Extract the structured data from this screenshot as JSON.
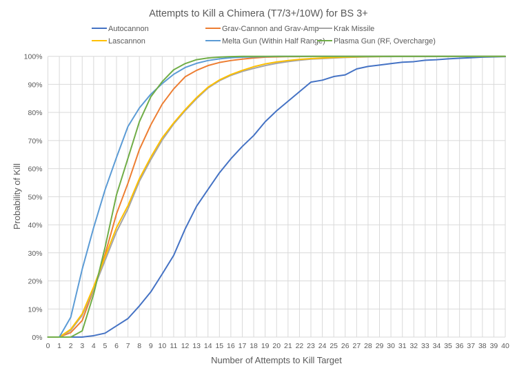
{
  "chart_data": {
    "type": "line",
    "title": "Attempts to Kill a Chimera (T7/3+/10W) for BS 3+",
    "xlabel": "Number of Attempts to Kill Target",
    "ylabel": "Probability of Kill",
    "xlim": [
      0,
      40
    ],
    "ylim": [
      0,
      100
    ],
    "grid": true,
    "legend_position": "top",
    "x": [
      0,
      1,
      2,
      3,
      4,
      5,
      6,
      7,
      8,
      9,
      10,
      11,
      12,
      13,
      14,
      15,
      16,
      17,
      18,
      19,
      20,
      21,
      22,
      23,
      24,
      25,
      26,
      27,
      28,
      29,
      30,
      31,
      32,
      33,
      34,
      35,
      36,
      37,
      38,
      39,
      40
    ],
    "x_tick_labels": [
      "0",
      "1",
      "2",
      "3",
      "4",
      "5",
      "6",
      "7",
      "8",
      "9",
      "10",
      "11",
      "12",
      "13",
      "14",
      "15",
      "16",
      "17",
      "18",
      "19",
      "20",
      "21",
      "22",
      "23",
      "24",
      "25",
      "26",
      "27",
      "28",
      "29",
      "30",
      "31",
      "32",
      "33",
      "34",
      "35",
      "36",
      "37",
      "38",
      "39",
      "40"
    ],
    "y_tick_labels": [
      "0%",
      "10%",
      "20%",
      "30%",
      "40%",
      "50%",
      "60%",
      "70%",
      "80%",
      "90%",
      "100%"
    ],
    "y_ticks": [
      0,
      10,
      20,
      30,
      40,
      50,
      60,
      70,
      80,
      90,
      100
    ],
    "series": [
      {
        "name": "Autocannon",
        "color": "#4472c4",
        "values": [
          0,
          0,
          0,
          0,
          0.5,
          1.4,
          4.0,
          6.6,
          11.1,
          16.1,
          22.5,
          29.1,
          38.5,
          46.6,
          52.6,
          58.5,
          63.5,
          67.9,
          71.8,
          76.7,
          80.6,
          84.0,
          87.4,
          90.8,
          91.5,
          92.8,
          93.4,
          95.5,
          96.4,
          96.9,
          97.4,
          97.9,
          98.1,
          98.6,
          98.8,
          99.1,
          99.3,
          99.5,
          99.7,
          99.8,
          99.9
        ]
      },
      {
        "name": "Grav-Cannon and Grav-Amp",
        "color": "#ed7d31",
        "values": [
          0,
          0,
          1.6,
          5.9,
          16.9,
          29.5,
          43.9,
          54.8,
          66.8,
          75.6,
          83.0,
          88.4,
          92.7,
          95.0,
          96.7,
          97.8,
          98.5,
          99.0,
          99.4,
          99.7,
          99.8,
          99.9,
          99.9,
          100,
          100,
          100,
          100,
          100,
          100,
          100,
          100,
          100,
          100,
          100,
          100,
          100,
          100,
          100,
          100,
          100,
          100
        ]
      },
      {
        "name": "Krak Missile",
        "color": "#a5a5a5",
        "values": [
          0,
          0,
          2.4,
          7.8,
          17.1,
          27.3,
          37.5,
          45.6,
          55.5,
          63.2,
          70.2,
          75.9,
          80.6,
          84.9,
          88.7,
          91.3,
          93.2,
          94.6,
          95.7,
          96.7,
          97.5,
          98.1,
          98.6,
          99.0,
          99.2,
          99.4,
          99.6,
          99.7,
          99.8,
          99.9,
          99.9,
          100,
          100,
          100,
          100,
          100,
          100,
          100,
          100,
          100,
          100
        ]
      },
      {
        "name": "Lascannon",
        "color": "#ffc000",
        "values": [
          0,
          0,
          2.8,
          8.3,
          17.9,
          28.6,
          39.0,
          46.8,
          56.4,
          64.1,
          71.0,
          76.3,
          81.0,
          85.3,
          89.0,
          91.6,
          93.5,
          95.0,
          96.3,
          97.3,
          98.0,
          98.5,
          98.9,
          99.2,
          99.4,
          99.6,
          99.7,
          99.8,
          99.9,
          99.9,
          100,
          100,
          100,
          100,
          100,
          100,
          100,
          100,
          100,
          100,
          100
        ]
      },
      {
        "name": "Melta Gun (Within Half Range)",
        "color": "#5b9bd5",
        "values": [
          0,
          0,
          7.1,
          24.2,
          39.0,
          52.5,
          64.0,
          75.0,
          81.6,
          86.5,
          90.3,
          93.6,
          96.0,
          97.5,
          98.5,
          99.1,
          99.5,
          99.7,
          99.8,
          99.9,
          100,
          100,
          100,
          100,
          100,
          100,
          100,
          100,
          100,
          100,
          100,
          100,
          100,
          100,
          100,
          100,
          100,
          100,
          100,
          100,
          100
        ]
      },
      {
        "name": "Plasma Gun (RF, Overcharge)",
        "color": "#70ad47",
        "values": [
          0,
          0,
          0,
          2.2,
          15.3,
          32.0,
          50.7,
          63.7,
          76.7,
          85.6,
          91.0,
          95.2,
          97.4,
          98.8,
          99.4,
          99.7,
          99.9,
          100,
          100,
          100,
          100,
          100,
          100,
          100,
          100,
          100,
          100,
          100,
          100,
          100,
          100,
          100,
          100,
          100,
          100,
          100,
          100,
          100,
          100,
          100,
          100
        ]
      }
    ]
  }
}
